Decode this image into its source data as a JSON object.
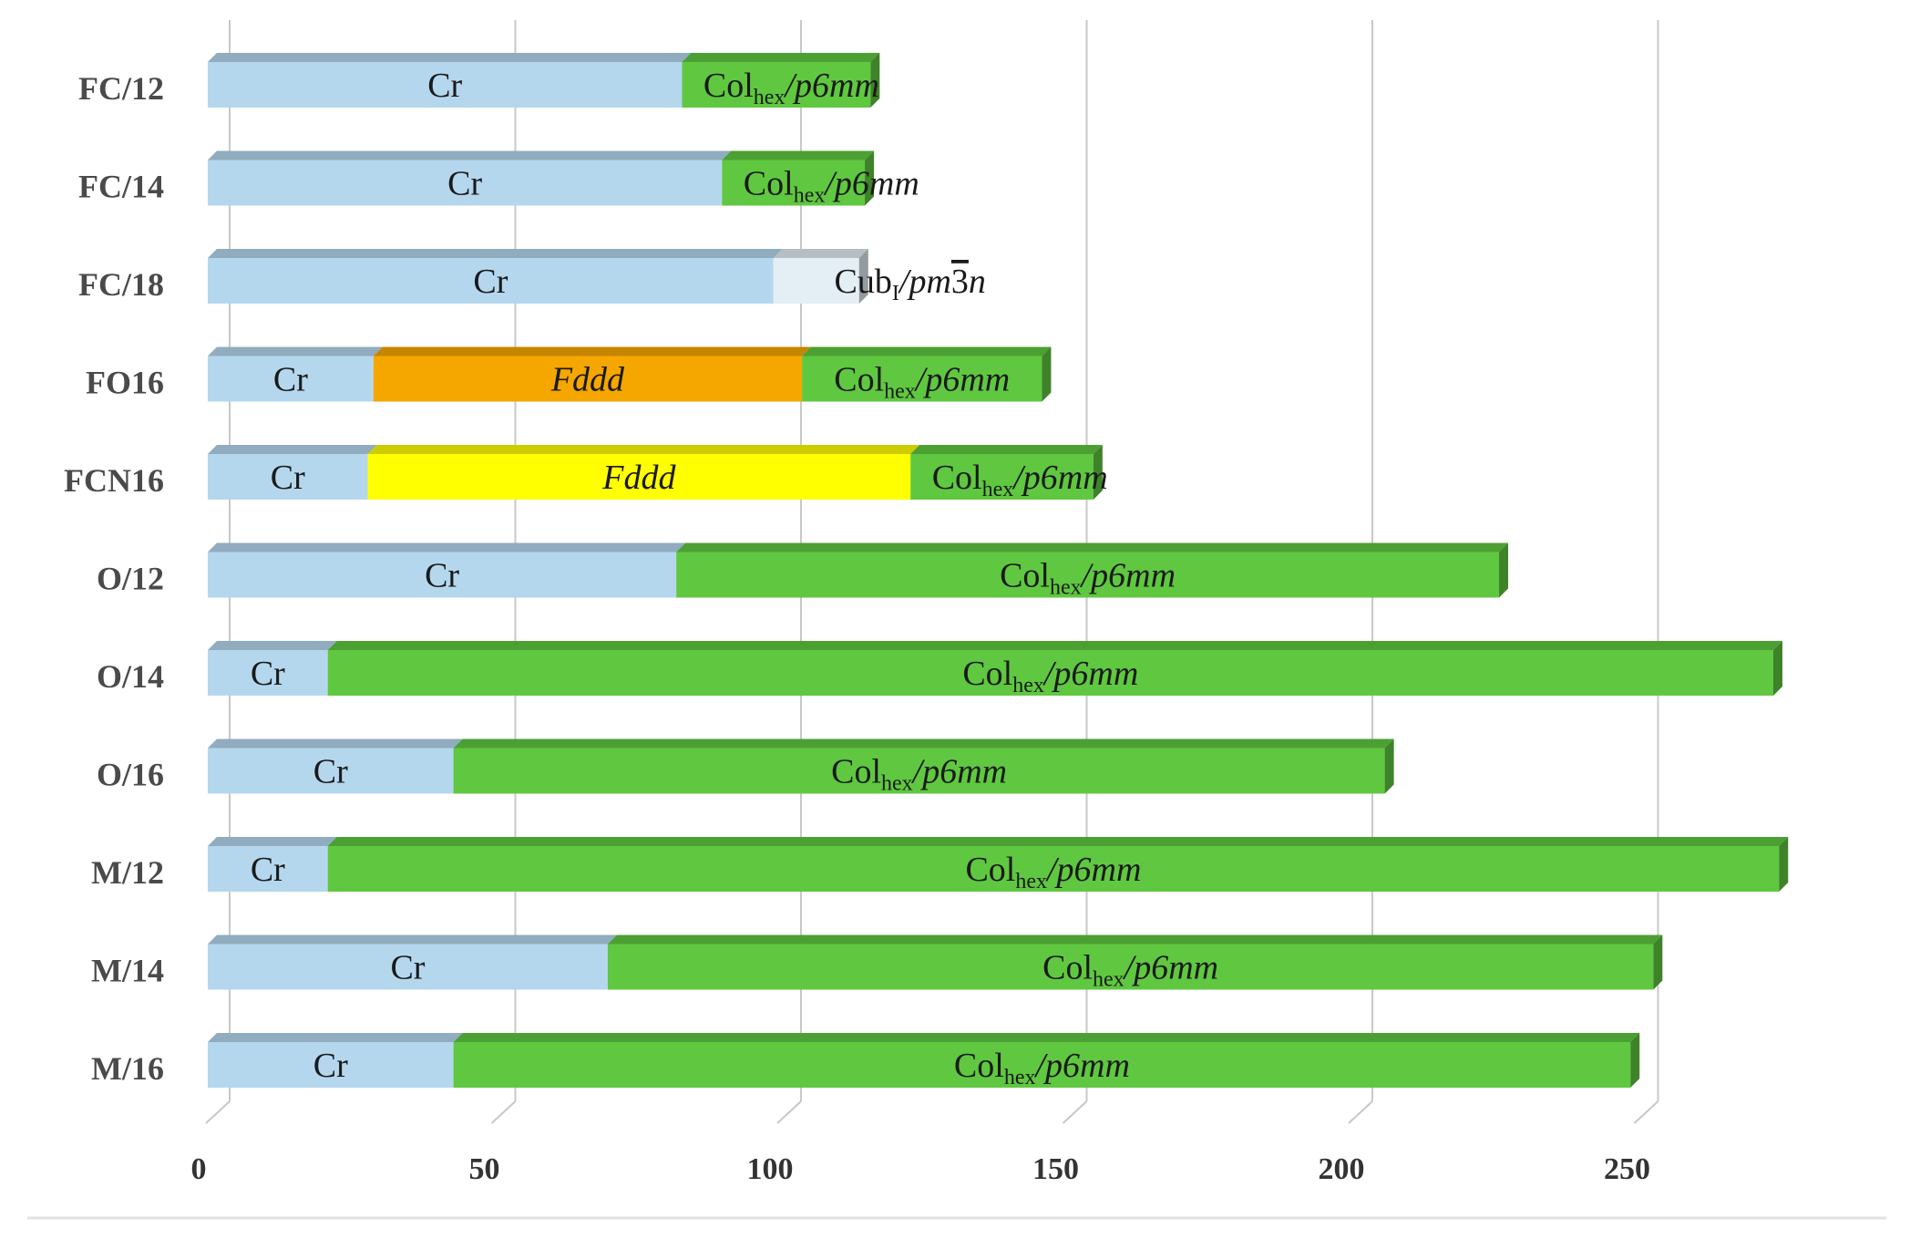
{
  "chart_data": {
    "type": "bar",
    "orientation": "horizontal",
    "stacked": true,
    "title": "",
    "xlabel": "",
    "ylabel": "",
    "xlim": [
      0,
      275
    ],
    "xticks": [
      0,
      50,
      100,
      150,
      200,
      250
    ],
    "grid": true,
    "categories": [
      "FC/12",
      "FC/14",
      "FC/18",
      "FO16",
      "FCN16",
      "O/12",
      "O/14",
      "O/16",
      "M/12",
      "M/14",
      "M/16"
    ],
    "bars": [
      {
        "category": "FC/12",
        "segments": [
          {
            "phase": "Cr",
            "start": 0,
            "end": 83,
            "color": "#b4d7ee"
          },
          {
            "phase": "Col_hex/p6mm",
            "start": 83,
            "end": 116,
            "color": "#5fc840"
          }
        ]
      },
      {
        "category": "FC/14",
        "segments": [
          {
            "phase": "Cr",
            "start": 0,
            "end": 90,
            "color": "#b4d7ee"
          },
          {
            "phase": "Col_hex/p6mm",
            "start": 90,
            "end": 115,
            "color": "#5fc840"
          }
        ]
      },
      {
        "category": "FC/18",
        "segments": [
          {
            "phase": "Cr",
            "start": 0,
            "end": 99,
            "color": "#b4d7ee"
          },
          {
            "phase": "Cub_I/pm3n",
            "start": 99,
            "end": 114,
            "color": "#e4eef5"
          }
        ]
      },
      {
        "category": "FO16",
        "segments": [
          {
            "phase": "Cr",
            "start": 0,
            "end": 29,
            "color": "#b4d7ee"
          },
          {
            "phase": "Fddd",
            "start": 29,
            "end": 104,
            "color": "#f5a700"
          },
          {
            "phase": "Col_hex/p6mm",
            "start": 104,
            "end": 146,
            "color": "#5fc840"
          }
        ]
      },
      {
        "category": "FCN16",
        "segments": [
          {
            "phase": "Cr",
            "start": 0,
            "end": 28,
            "color": "#b4d7ee"
          },
          {
            "phase": "Fddd",
            "start": 28,
            "end": 123,
            "color": "#ffff00"
          },
          {
            "phase": "Col_hex/p6mm",
            "start": 123,
            "end": 155,
            "color": "#5fc840"
          }
        ]
      },
      {
        "category": "O/12",
        "segments": [
          {
            "phase": "Cr",
            "start": 0,
            "end": 82,
            "color": "#b4d7ee"
          },
          {
            "phase": "Col_hex/p6mm",
            "start": 82,
            "end": 226,
            "color": "#5fc840"
          }
        ]
      },
      {
        "category": "O/14",
        "segments": [
          {
            "phase": "Cr",
            "start": 0,
            "end": 21,
            "color": "#b4d7ee"
          },
          {
            "phase": "Col_hex/p6mm",
            "start": 21,
            "end": 274,
            "color": "#5fc840"
          }
        ]
      },
      {
        "category": "O/16",
        "segments": [
          {
            "phase": "Cr",
            "start": 0,
            "end": 43,
            "color": "#b4d7ee"
          },
          {
            "phase": "Col_hex/p6mm",
            "start": 43,
            "end": 206,
            "color": "#5fc840"
          }
        ]
      },
      {
        "category": "M/12",
        "segments": [
          {
            "phase": "Cr",
            "start": 0,
            "end": 21,
            "color": "#b4d7ee"
          },
          {
            "phase": "Col_hex/p6mm",
            "start": 21,
            "end": 275,
            "color": "#5fc840"
          }
        ]
      },
      {
        "category": "M/14",
        "segments": [
          {
            "phase": "Cr",
            "start": 0,
            "end": 70,
            "color": "#b4d7ee"
          },
          {
            "phase": "Col_hex/p6mm",
            "start": 70,
            "end": 253,
            "color": "#5fc840"
          }
        ]
      },
      {
        "category": "M/16",
        "segments": [
          {
            "phase": "Cr",
            "start": 0,
            "end": 43,
            "color": "#b4d7ee"
          },
          {
            "phase": "Col_hex/p6mm",
            "start": 43,
            "end": 249,
            "color": "#5fc840"
          }
        ]
      }
    ],
    "labels": {
      "cr": "Cr",
      "fddd": "Fddd",
      "col_main": "Col",
      "col_sub": "hex",
      "col_tail": "/p6mm",
      "cub_main": "Cub",
      "cub_sub": "I",
      "cub_tail_a": "/pm",
      "cub_tail_bar": "3",
      "cub_tail_b": "n"
    }
  }
}
